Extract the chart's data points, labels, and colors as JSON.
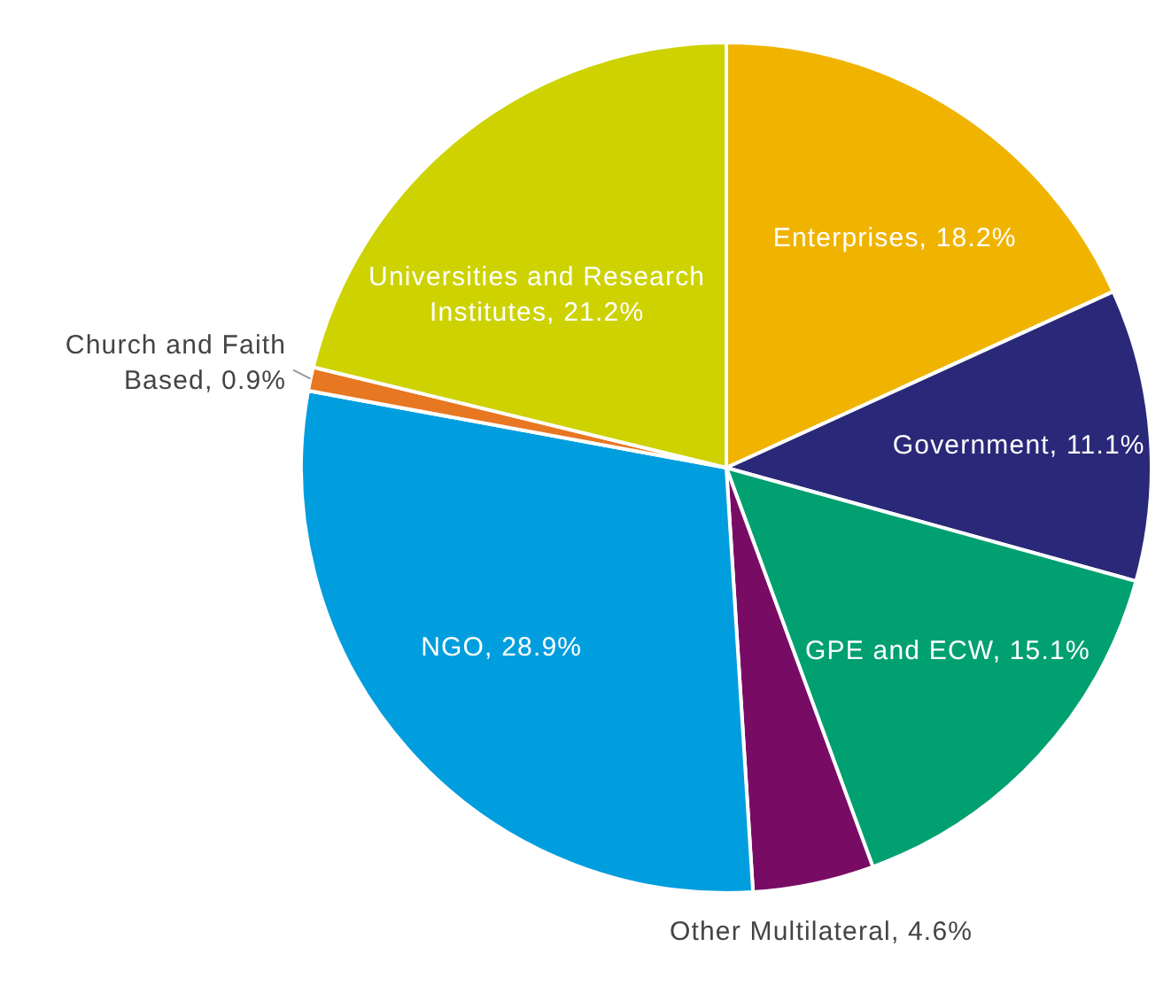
{
  "chart_data": {
    "type": "pie",
    "categories": [
      "Enterprises",
      "Government",
      "GPE and ECW",
      "Other Multilateral",
      "NGO",
      "Church and Faith Based",
      "Universities and Research Institutes"
    ],
    "values": [
      18.2,
      11.1,
      15.1,
      4.6,
      28.9,
      0.9,
      21.2
    ],
    "colors": [
      "#f0b400",
      "#2a2878",
      "#00a070",
      "#780c64",
      "#009ede",
      "#e87722",
      "#cdd200"
    ],
    "value_labels": [
      "18.2%",
      "11.1%",
      "15.1%",
      "4.6%",
      "28.9%",
      "0.9%",
      "21.2%"
    ]
  }
}
